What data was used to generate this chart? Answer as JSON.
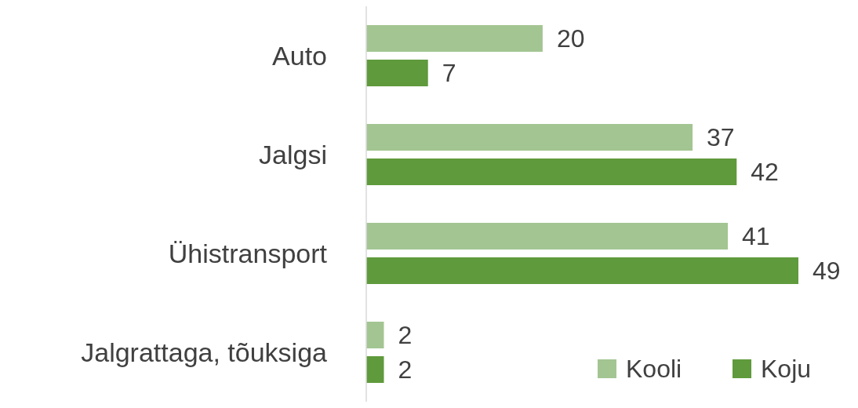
{
  "chart_data": {
    "type": "bar",
    "orientation": "horizontal",
    "categories": [
      "Auto",
      "Jalgsi",
      "Ühistransport",
      "Jalgrattaga, tõuksiga"
    ],
    "series": [
      {
        "name": "Kooli",
        "color": "#a3c592",
        "values": [
          20,
          37,
          41,
          2
        ]
      },
      {
        "name": "Koju",
        "color": "#5f9a3c",
        "values": [
          7,
          42,
          49,
          2
        ]
      }
    ],
    "data_labels": true,
    "legend": "bottom right"
  }
}
